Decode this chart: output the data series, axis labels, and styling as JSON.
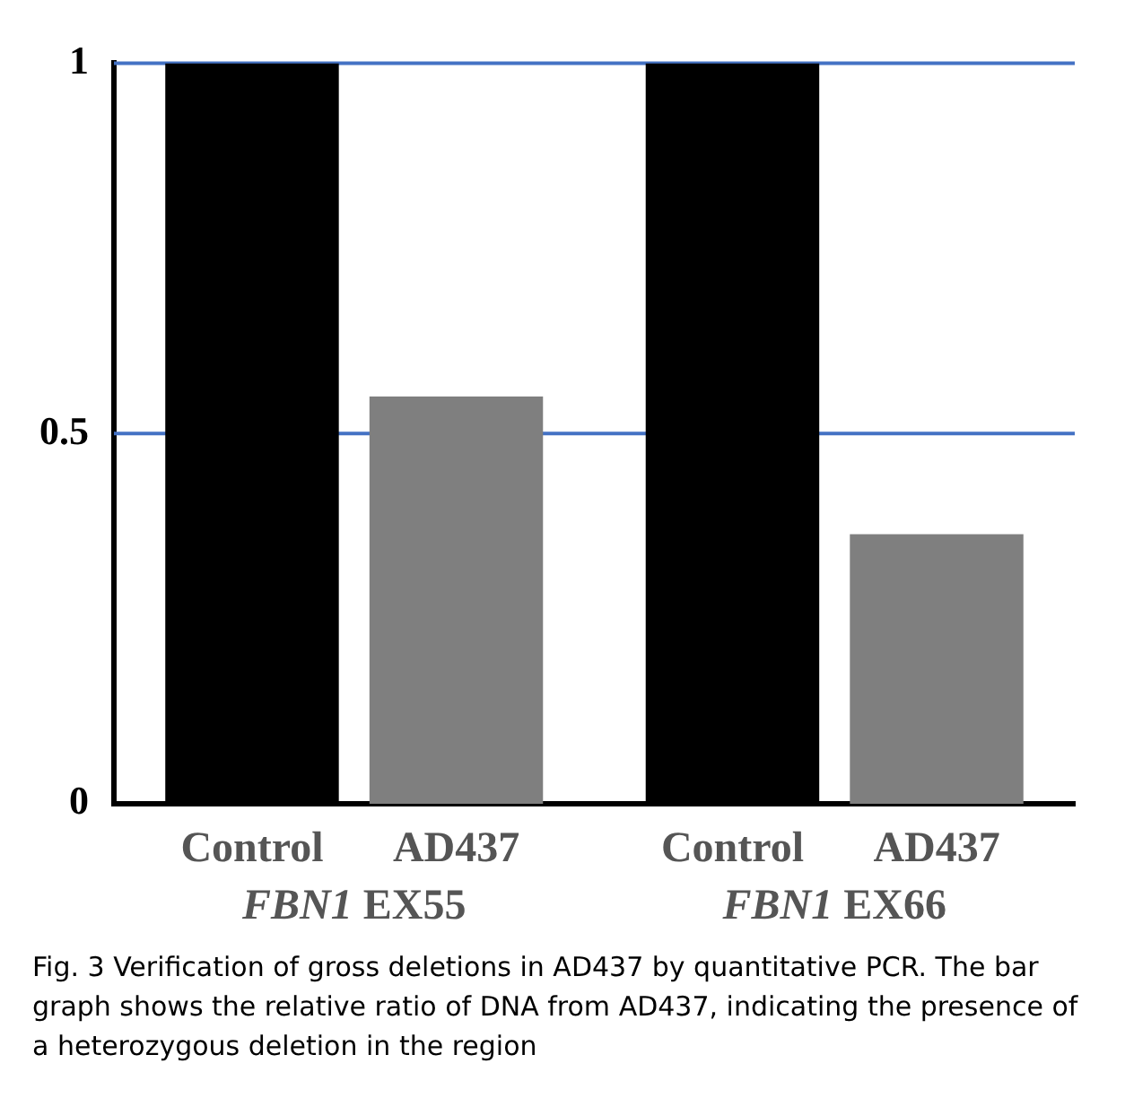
{
  "chart_data": {
    "type": "bar",
    "categories": [
      "FBN1 EX55",
      "FBN1 EX66"
    ],
    "series": [
      {
        "name": "Control",
        "color": "#000000",
        "values": [
          1,
          1
        ]
      },
      {
        "name": "AD437",
        "color": "#7f7f7f",
        "values": [
          0.55,
          0.364
        ]
      }
    ],
    "ylim": [
      0,
      1
    ],
    "yticks": [
      0,
      0.5,
      1
    ],
    "ref_lines": [
      {
        "axis": "y",
        "value": 0.5,
        "color": "#4472c4"
      },
      {
        "axis": "y",
        "value": 1,
        "color": "#4472c4"
      }
    ],
    "legend": false,
    "annotations": [
      "Fig. 3 Verification of gross deletions in AD437 by quantitative PCR. The bar graph shows the relative ratio of DNA from AD437, indicating the presence of a heterozygous deletion in the region"
    ]
  }
}
